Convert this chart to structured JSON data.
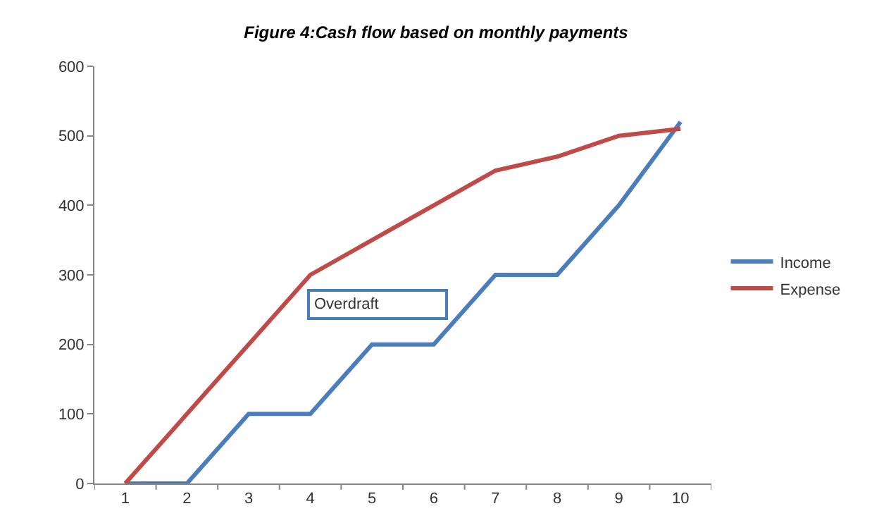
{
  "chart_data": {
    "type": "line",
    "title": "Figure 4:Cash flow based on monthly payments",
    "categories": [
      "1",
      "2",
      "3",
      "4",
      "5",
      "6",
      "7",
      "8",
      "9",
      "10"
    ],
    "series": [
      {
        "name": "Income",
        "color": "#4a7ebb",
        "values": [
          0,
          0,
          100,
          100,
          200,
          200,
          300,
          300,
          400,
          520
        ]
      },
      {
        "name": "Expense",
        "color": "#be4b48",
        "values": [
          0,
          100,
          200,
          300,
          350,
          400,
          450,
          470,
          500,
          510
        ]
      }
    ],
    "ylim": [
      0,
      600
    ],
    "yticks": [
      0,
      100,
      200,
      300,
      400,
      500,
      600
    ],
    "annotations": [
      "Overdraft"
    ],
    "grid": false,
    "legend": "right",
    "marker": "none",
    "line_style": "solid"
  }
}
